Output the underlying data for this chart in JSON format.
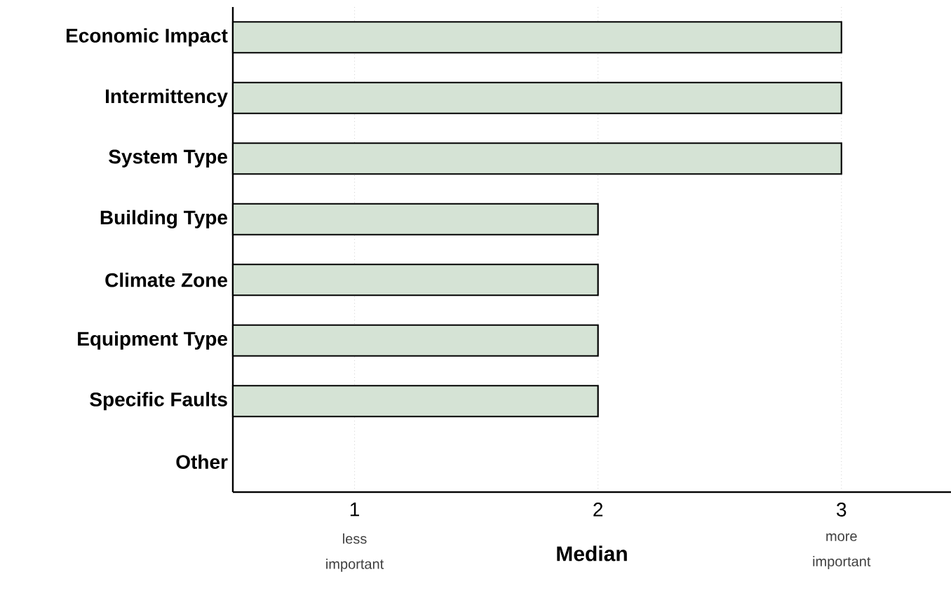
{
  "chart_data": {
    "type": "bar",
    "orientation": "horizontal",
    "xlabel": "Median",
    "categories": [
      "Economic Impact",
      "Intermittency",
      "System Type",
      "Building Type",
      "Climate Zone",
      "Equipment Type",
      "Specific Faults",
      "Other"
    ],
    "values": [
      3,
      3,
      3,
      2,
      2,
      2,
      2,
      null
    ],
    "color": "#d5e3d5",
    "xlim": [
      0.5,
      3.45
    ],
    "xticks": [
      1,
      2,
      3
    ],
    "grid": "x",
    "annotations": [
      "less important",
      "more important"
    ]
  }
}
